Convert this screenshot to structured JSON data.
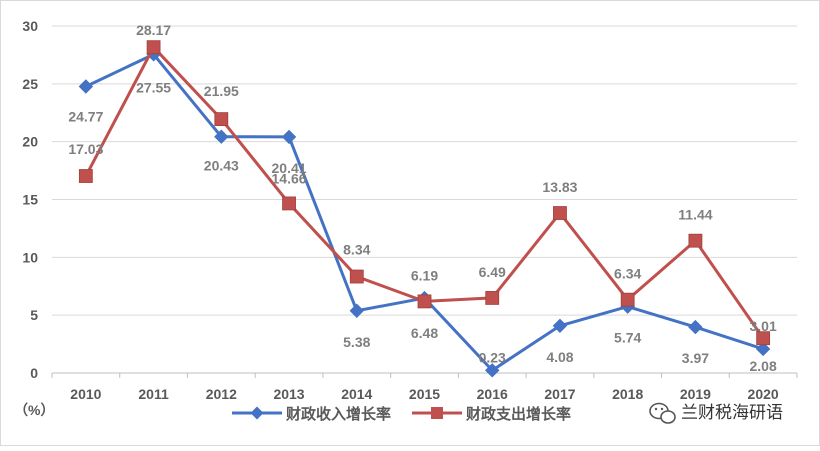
{
  "chart_data": {
    "type": "line",
    "categories": [
      "2010",
      "2011",
      "2012",
      "2013",
      "2014",
      "2015",
      "2016",
      "2017",
      "2018",
      "2019",
      "2020"
    ],
    "ylim": [
      0,
      30
    ],
    "yticks": [
      0,
      5,
      10,
      15,
      20,
      25,
      30
    ],
    "ylabel": "（%）",
    "grid": true,
    "legend_position": "bottom",
    "series": [
      {
        "name": "财政收入增长率",
        "color": "#4472c4",
        "marker": "diamond",
        "values": [
          24.77,
          27.55,
          20.43,
          20.41,
          5.38,
          6.48,
          0.23,
          4.08,
          5.74,
          3.97,
          2.08
        ],
        "labels": [
          "24.77",
          "27.55",
          "20.43",
          "20.41",
          "5.38",
          "6.48",
          "0.23",
          "4.08",
          "5.74",
          "3.97",
          "2.08"
        ]
      },
      {
        "name": "财政支出增长率",
        "color": "#c0504d",
        "marker": "square",
        "values": [
          17.03,
          28.17,
          21.95,
          14.66,
          8.34,
          6.19,
          6.49,
          13.83,
          6.34,
          11.44,
          3.01
        ],
        "labels": [
          "17.03",
          "28.17",
          "21.95",
          "14.66",
          "8.34",
          "6.19",
          "6.49",
          "13.83",
          "6.34",
          "11.44",
          "3.01"
        ]
      }
    ]
  },
  "watermark": {
    "text": "兰财税海研语",
    "icon": "wechat-icon"
  }
}
